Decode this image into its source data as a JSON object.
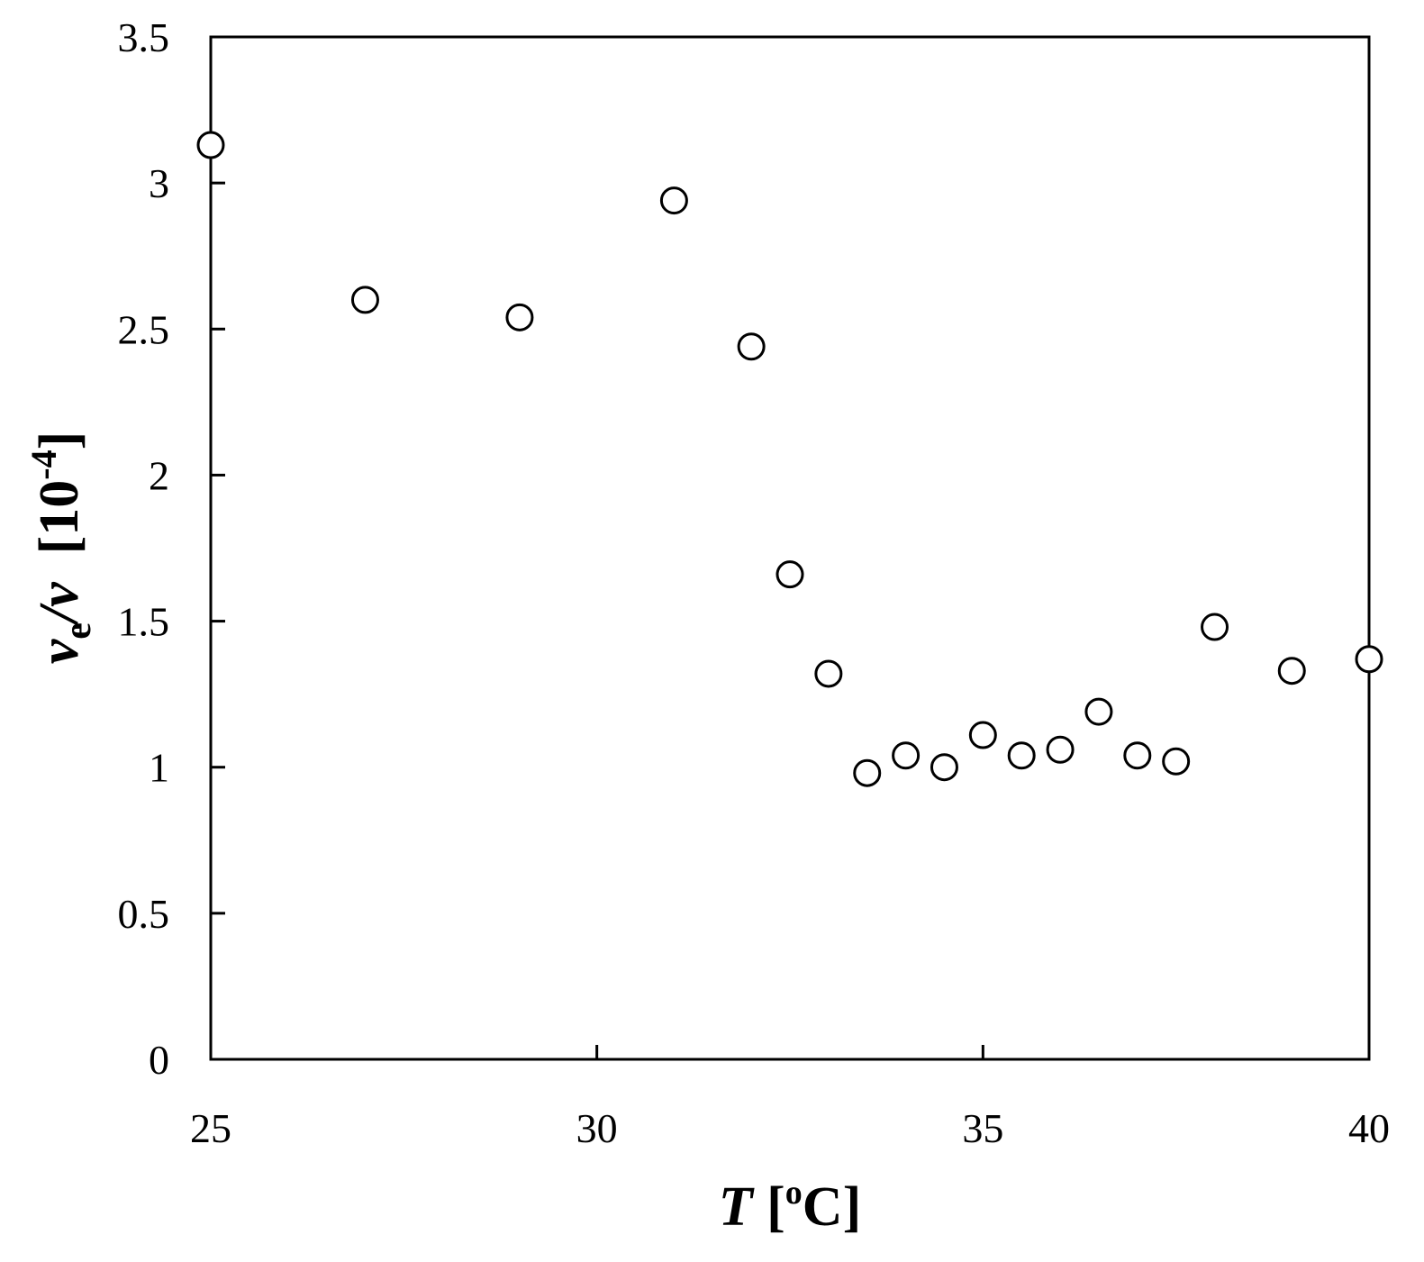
{
  "chart_data": {
    "type": "scatter",
    "title": "",
    "xlabel": {
      "symbol": "T",
      "unit_open": " [",
      "unit_sup": "o",
      "unit_main": "C",
      "unit_close": "]"
    },
    "ylabel": {
      "symbol_1": "v",
      "subscript": "e",
      "slash": "/",
      "symbol_2": "v",
      "unit_open": "  [10",
      "unit_sup": "-4",
      "unit_close": "]"
    },
    "xlim": [
      25,
      40
    ],
    "ylim": [
      0,
      3.5
    ],
    "xticks": [
      {
        "value": 25,
        "label": "25"
      },
      {
        "value": 30,
        "label": "30"
      },
      {
        "value": 35,
        "label": "35"
      },
      {
        "value": 40,
        "label": "40"
      }
    ],
    "yticks": [
      {
        "value": 0,
        "label": "0"
      },
      {
        "value": 0.5,
        "label": "0.5"
      },
      {
        "value": 1,
        "label": "1"
      },
      {
        "value": 1.5,
        "label": "1.5"
      },
      {
        "value": 2,
        "label": "2"
      },
      {
        "value": 2.5,
        "label": "2.5"
      },
      {
        "value": 3,
        "label": "3"
      },
      {
        "value": 3.5,
        "label": "3.5"
      }
    ],
    "grid": false,
    "legend": "none",
    "marker": "open-circle",
    "marker_color": "#000000",
    "series": [
      {
        "points": [
          {
            "x": 25.0,
            "y": 3.13
          },
          {
            "x": 27.0,
            "y": 2.6
          },
          {
            "x": 29.0,
            "y": 2.54
          },
          {
            "x": 31.0,
            "y": 2.94
          },
          {
            "x": 32.0,
            "y": 2.44
          },
          {
            "x": 32.5,
            "y": 1.66
          },
          {
            "x": 33.0,
            "y": 1.32
          },
          {
            "x": 33.5,
            "y": 0.98
          },
          {
            "x": 34.0,
            "y": 1.04
          },
          {
            "x": 34.5,
            "y": 1.0
          },
          {
            "x": 35.0,
            "y": 1.11
          },
          {
            "x": 35.5,
            "y": 1.04
          },
          {
            "x": 36.0,
            "y": 1.06
          },
          {
            "x": 36.5,
            "y": 1.19
          },
          {
            "x": 37.0,
            "y": 1.04
          },
          {
            "x": 37.5,
            "y": 1.02
          },
          {
            "x": 38.0,
            "y": 1.48
          },
          {
            "x": 39.0,
            "y": 1.33
          },
          {
            "x": 40.0,
            "y": 1.37
          }
        ]
      }
    ]
  }
}
